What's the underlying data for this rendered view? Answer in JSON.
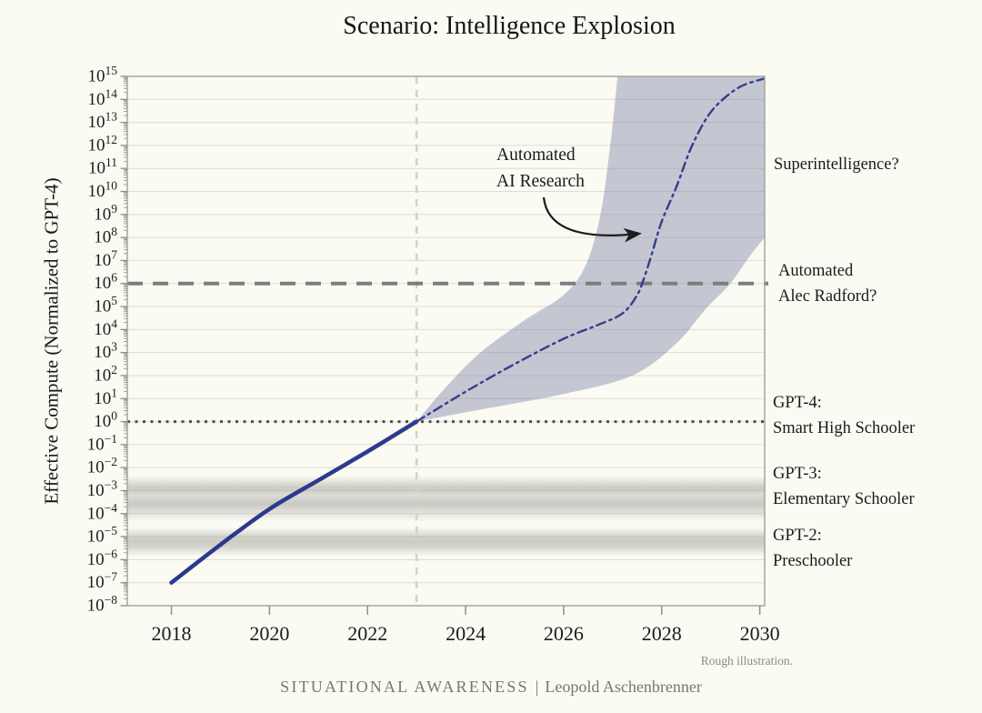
{
  "title": "Scenario: Intelligence Explosion",
  "annotations": {
    "automated_ai_research": {
      "line1": "Automated",
      "line2": "AI Research"
    },
    "superintelligence": "Superintelligence?",
    "automated_alec": {
      "line1": "Automated",
      "line2": "Alec Radford?"
    },
    "gpt4": {
      "line1": "GPT-4:",
      "line2": "Smart High Schooler"
    },
    "gpt3": {
      "line1": "GPT-3:",
      "line2": "Elementary Schooler"
    },
    "gpt2": {
      "line1": "GPT-2:",
      "line2": "Preschooler"
    }
  },
  "footer": {
    "note": "Rough illustration.",
    "credit_title": "SITUATIONAL AWARENESS",
    "credit_separator": "|",
    "credit_author": "Leopold Aschenbrenner"
  },
  "chart_data": {
    "type": "line",
    "title": "Scenario: Intelligence Explosion",
    "xlabel": "",
    "ylabel": "Effective Compute (Normalized to GPT-4)",
    "y_scale": "log10",
    "x_ticks": [
      2018,
      2020,
      2022,
      2024,
      2026,
      2028,
      2030
    ],
    "y_tick_exponents": [
      15,
      14,
      13,
      12,
      11,
      10,
      9,
      8,
      7,
      6,
      5,
      4,
      3,
      2,
      1,
      0,
      -1,
      -2,
      -3,
      -4,
      -5,
      -6,
      -7,
      -8
    ],
    "xlim": [
      2017.1,
      2030.1
    ],
    "ylim_exponents": [
      -8,
      15
    ],
    "grid": true,
    "legend": "none",
    "colors": {
      "background": "#fbfaf3",
      "grid": "#ddddd3",
      "border": "#a8a89e",
      "tick": "#8f8f87",
      "text": "#1c1c1c",
      "historical_line": "#2b3a8c",
      "projection_line": "#343e8e",
      "band_fill": "rgba(116,122,160,0.40)",
      "hline_dashed": "#7d7d7d",
      "hline_dotted": "#4f4f4f",
      "vline": "#d2d2c8",
      "reference_band": "#8c8c86",
      "arrow": "#1c1c1c"
    },
    "series": [
      {
        "name": "Historical effective compute",
        "style": "solid",
        "width": 4.5,
        "points": [
          [
            2018,
            -7.0
          ],
          [
            2019,
            -5.35
          ],
          [
            2020,
            -3.8
          ],
          [
            2021,
            -2.55
          ],
          [
            2022,
            -1.3
          ],
          [
            2023,
            0
          ]
        ]
      },
      {
        "name": "Projected effective compute (intelligence explosion)",
        "style": "dashdot",
        "width": 2.4,
        "points": [
          [
            2023,
            0
          ],
          [
            2024,
            1.3
          ],
          [
            2025,
            2.5
          ],
          [
            2026,
            3.6
          ],
          [
            2026.7,
            4.2
          ],
          [
            2027.2,
            4.7
          ],
          [
            2027.5,
            5.5
          ],
          [
            2027.65,
            6.3
          ],
          [
            2027.8,
            7.3
          ],
          [
            2028.0,
            8.7
          ],
          [
            2028.3,
            10.2
          ],
          [
            2028.6,
            11.9
          ],
          [
            2028.95,
            13.3
          ],
          [
            2029.3,
            14.1
          ],
          [
            2029.65,
            14.6
          ],
          [
            2030.08,
            14.9
          ]
        ]
      }
    ],
    "uncertainty_band": {
      "upper": [
        [
          2023,
          0
        ],
        [
          2023.6,
          1.5
        ],
        [
          2024.3,
          3.0
        ],
        [
          2025.2,
          4.4
        ],
        [
          2026.0,
          5.5
        ],
        [
          2026.45,
          6.8
        ],
        [
          2026.75,
          9.0
        ],
        [
          2026.95,
          12.0
        ],
        [
          2027.1,
          15.0
        ]
      ],
      "lower": [
        [
          2023,
          0
        ],
        [
          2024.5,
          0.6
        ],
        [
          2026,
          1.2
        ],
        [
          2027.4,
          2.0
        ],
        [
          2028.3,
          3.4
        ],
        [
          2028.9,
          4.9
        ],
        [
          2029.4,
          6.0
        ],
        [
          2029.8,
          7.2
        ],
        [
          2030.1,
          8.0
        ]
      ]
    },
    "hlines": [
      {
        "exp": 6,
        "style": "dashed",
        "width": 4,
        "label": "Automated Alec Radford?"
      },
      {
        "exp": 0,
        "style": "dotted",
        "width": 3,
        "label": "GPT-4: Smart High Schooler"
      }
    ],
    "vlines": [
      {
        "x": 2023,
        "style": "dashed",
        "width": 2.5
      }
    ],
    "reference_bands": [
      {
        "label": "GPT-3: Elementary Schooler",
        "exp_top": -2.35,
        "exp_bottom": -4.35,
        "max_opacity": 0.45
      },
      {
        "label": "GPT-2: Preschooler",
        "exp_top": -4.6,
        "exp_bottom": -5.85,
        "max_opacity": 0.42
      }
    ],
    "arrow": {
      "from": [
        598,
        217
      ],
      "to": [
        702,
        257
      ]
    }
  }
}
